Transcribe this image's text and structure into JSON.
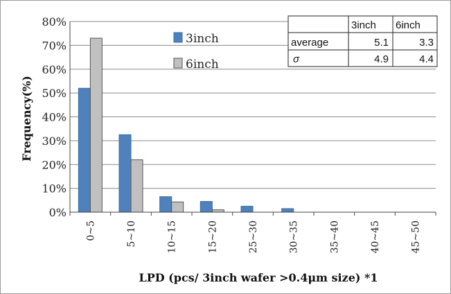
{
  "chart_data": {
    "type": "bar",
    "categories": [
      "0~5",
      "5~10",
      "10~15",
      "15~20",
      "25~30",
      "30~35",
      "35~40",
      "40~45",
      "45~50"
    ],
    "series": [
      {
        "name": "3inch",
        "values": [
          52,
          32.5,
          6.5,
          4.5,
          2.5,
          1.5,
          0,
          0,
          0
        ],
        "color": "#4f81bd"
      },
      {
        "name": "6inch",
        "values": [
          73,
          22,
          4.3,
          1,
          0,
          0,
          0,
          0,
          0
        ],
        "color": "#c0c0c0"
      }
    ],
    "ylabel": "Frequency(%)",
    "xlabel": "LPD (pcs/ 3inch wafer >0.4μm size) *1",
    "ylim": [
      0,
      80
    ],
    "yticks": [
      0,
      10,
      20,
      30,
      40,
      50,
      60,
      70,
      80
    ],
    "ytick_labels": [
      "0%",
      "10%",
      "20%",
      "30%",
      "40%",
      "50%",
      "60%",
      "70%",
      "80%"
    ],
    "grid": true,
    "legend": "top-center"
  },
  "stats_table": {
    "headers": [
      "",
      "3inch",
      "6inch"
    ],
    "rows": [
      [
        "average",
        "5.1",
        "3.3"
      ],
      [
        "σ",
        "4.9",
        "4.4"
      ]
    ]
  }
}
